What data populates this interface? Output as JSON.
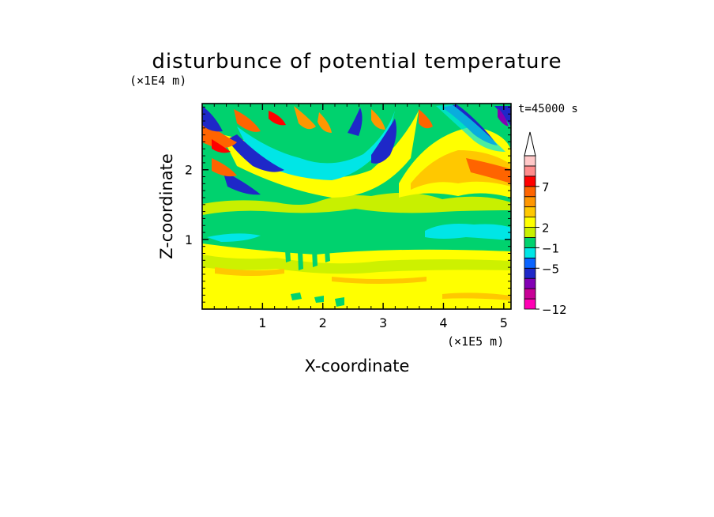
{
  "chart_data": {
    "type": "heatmap",
    "title": "disturbunce of potential temperature",
    "time_label": "t=45000 s",
    "xlabel": "X-coordinate",
    "ylabel": "Z-coordinate",
    "x_unit": "(×1E5 m)",
    "y_unit": "(×1E4 m)",
    "x_range": [
      0,
      5.12
    ],
    "y_range": [
      0,
      2.95
    ],
    "x_ticks": [
      "1",
      "2",
      "3",
      "4",
      "5"
    ],
    "y_ticks": [
      "1",
      "2"
    ],
    "x_tick_values": [
      1,
      2,
      3,
      4,
      5
    ],
    "y_tick_values": [
      1,
      2
    ],
    "colorbar": {
      "levels": [
        "-12",
        "-5",
        "-1",
        "2",
        "7"
      ],
      "level_values": [
        -12,
        -5,
        -1,
        2,
        7
      ],
      "colors": [
        "#ff00b4",
        "#c80096",
        "#8200b4",
        "#1e28c8",
        "#0a64ff",
        "#00e6e6",
        "#00d26e",
        "#c8f000",
        "#ffff00",
        "#ffc800",
        "#ff9600",
        "#ff6400",
        "#ff0000",
        "#ff8c8c",
        "#ffc8c8"
      ],
      "extend": "max"
    }
  }
}
